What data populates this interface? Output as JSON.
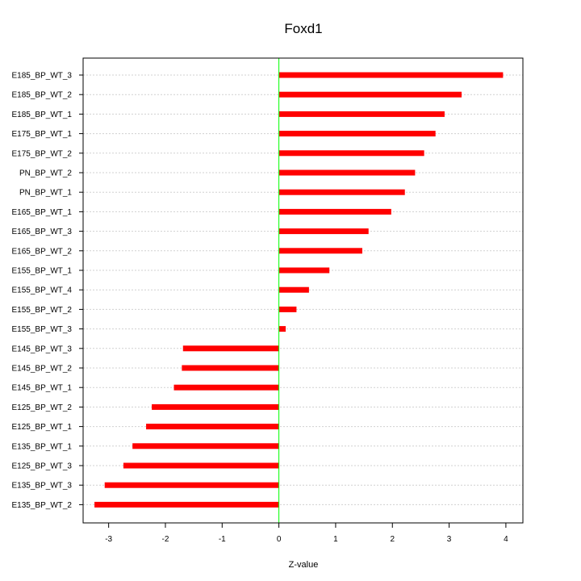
{
  "chart_data": {
    "type": "bar",
    "orientation": "horizontal",
    "title": "Foxd1",
    "xlabel": "Z-value",
    "ylabel": "",
    "xlim": [
      -3.45,
      4.3
    ],
    "x_ticks": [
      -3,
      -2,
      -1,
      0,
      1,
      2,
      3,
      4
    ],
    "grid": true,
    "legend": "none",
    "bar_color": "#ff0000",
    "zero_line_color": "#00ff00",
    "grid_color": "#d0d0d0",
    "categories": [
      "E185_BP_WT_3",
      "E185_BP_WT_2",
      "E185_BP_WT_1",
      "E175_BP_WT_1",
      "E175_BP_WT_2",
      "PN_BP_WT_2",
      "PN_BP_WT_1",
      "E165_BP_WT_1",
      "E165_BP_WT_3",
      "E165_BP_WT_2",
      "E155_BP_WT_1",
      "E155_BP_WT_4",
      "E155_BP_WT_2",
      "E155_BP_WT_3",
      "E145_BP_WT_3",
      "E145_BP_WT_2",
      "E145_BP_WT_1",
      "E125_BP_WT_2",
      "E125_BP_WT_1",
      "E135_BP_WT_1",
      "E125_BP_WT_3",
      "E135_BP_WT_3",
      "E135_BP_WT_2"
    ],
    "values": [
      3.95,
      3.22,
      2.92,
      2.76,
      2.56,
      2.4,
      2.22,
      1.98,
      1.58,
      1.47,
      0.89,
      0.53,
      0.31,
      0.12,
      -1.69,
      -1.71,
      -1.85,
      -2.24,
      -2.34,
      -2.58,
      -2.74,
      -3.07,
      -3.25
    ]
  }
}
